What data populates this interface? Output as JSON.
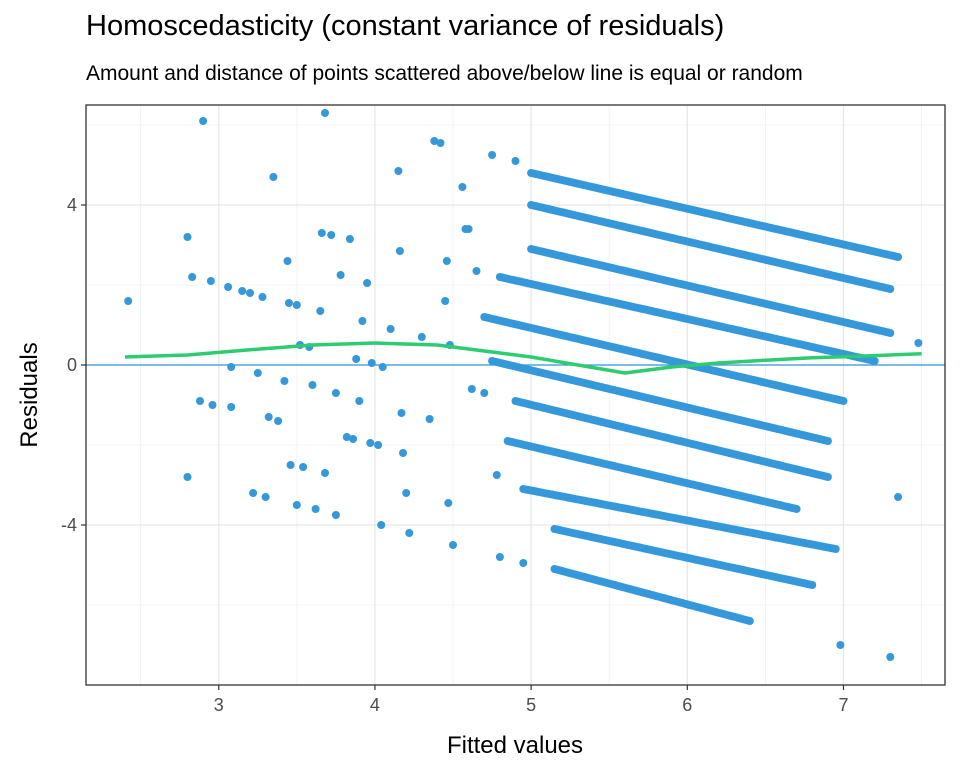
{
  "chart_data": {
    "type": "scatter",
    "title": "Homoscedasticity (constant variance of residuals)",
    "subtitle": "Amount and distance of points scattered above/below line is equal or random",
    "xlabel": "Fitted values",
    "ylabel": "Residuals",
    "xlim": [
      2.15,
      7.65
    ],
    "ylim": [
      -8,
      6.5
    ],
    "x_ticks": [
      3,
      4,
      5,
      6,
      7
    ],
    "y_ticks": [
      -4,
      0,
      4
    ],
    "grid": true,
    "colors": {
      "points": "#3498db",
      "smooth": "#2ecc71",
      "reference_line": "#3498db"
    },
    "reference_line": {
      "y": 0
    },
    "smooth_line": {
      "x": [
        2.4,
        2.8,
        3.2,
        3.6,
        4.0,
        4.4,
        4.7,
        5.0,
        5.3,
        5.6,
        5.9,
        6.2,
        6.5,
        6.8,
        7.1,
        7.5
      ],
      "y": [
        0.2,
        0.25,
        0.38,
        0.5,
        0.55,
        0.5,
        0.35,
        0.2,
        0.0,
        -0.2,
        -0.05,
        0.05,
        0.12,
        0.18,
        0.22,
        0.28
      ]
    },
    "bands": [
      {
        "x": [
          5.0,
          7.35
        ],
        "y": [
          4.8,
          2.7
        ]
      },
      {
        "x": [
          5.0,
          7.3
        ],
        "y": [
          4.0,
          1.9
        ]
      },
      {
        "x": [
          5.0,
          7.3
        ],
        "y": [
          2.9,
          0.8
        ]
      },
      {
        "x": [
          4.8,
          7.2
        ],
        "y": [
          2.2,
          0.1
        ]
      },
      {
        "x": [
          4.7,
          7.0
        ],
        "y": [
          1.2,
          -0.9
        ]
      },
      {
        "x": [
          4.75,
          6.9
        ],
        "y": [
          0.1,
          -1.9
        ]
      },
      {
        "x": [
          4.9,
          6.9
        ],
        "y": [
          -0.9,
          -2.8
        ]
      },
      {
        "x": [
          4.85,
          6.7
        ],
        "y": [
          -1.9,
          -3.6
        ]
      },
      {
        "x": [
          4.95,
          6.95
        ],
        "y": [
          -3.1,
          -4.6
        ]
      },
      {
        "x": [
          5.15,
          6.8
        ],
        "y": [
          -4.1,
          -5.5
        ]
      },
      {
        "x": [
          5.15,
          6.4
        ],
        "y": [
          -5.1,
          -6.4
        ]
      }
    ],
    "points": [
      [
        2.42,
        1.6
      ],
      [
        2.8,
        3.2
      ],
      [
        2.8,
        -2.8
      ],
      [
        2.83,
        2.2
      ],
      [
        2.9,
        6.1
      ],
      [
        2.95,
        2.1
      ],
      [
        2.88,
        -0.9
      ],
      [
        2.96,
        -1.0
      ],
      [
        3.06,
        1.95
      ],
      [
        3.08,
        -1.05
      ],
      [
        3.08,
        -0.05
      ],
      [
        3.15,
        1.85
      ],
      [
        3.2,
        1.8
      ],
      [
        3.22,
        -3.2
      ],
      [
        3.25,
        -0.2
      ],
      [
        3.28,
        1.7
      ],
      [
        3.3,
        -3.3
      ],
      [
        3.32,
        -1.3
      ],
      [
        3.35,
        4.7
      ],
      [
        3.38,
        -1.4
      ],
      [
        3.42,
        -0.4
      ],
      [
        3.44,
        2.6
      ],
      [
        3.45,
        1.55
      ],
      [
        3.46,
        -2.5
      ],
      [
        3.5,
        1.5
      ],
      [
        3.5,
        -3.5
      ],
      [
        3.52,
        0.5
      ],
      [
        3.54,
        -2.55
      ],
      [
        3.58,
        0.45
      ],
      [
        3.6,
        -0.5
      ],
      [
        3.62,
        -3.6
      ],
      [
        3.65,
        1.35
      ],
      [
        3.66,
        3.3
      ],
      [
        3.68,
        6.3
      ],
      [
        3.68,
        -2.7
      ],
      [
        3.72,
        3.25
      ],
      [
        3.75,
        -0.7
      ],
      [
        3.75,
        -3.75
      ],
      [
        3.78,
        2.25
      ],
      [
        3.82,
        -1.8
      ],
      [
        3.84,
        3.15
      ],
      [
        3.86,
        -1.85
      ],
      [
        3.88,
        0.15
      ],
      [
        3.9,
        -0.9
      ],
      [
        3.92,
        1.1
      ],
      [
        3.95,
        2.05
      ],
      [
        3.97,
        -1.95
      ],
      [
        3.98,
        0.05
      ],
      [
        4.02,
        -2.0
      ],
      [
        4.04,
        -4.0
      ],
      [
        4.05,
        -0.05
      ],
      [
        4.1,
        0.9
      ],
      [
        4.15,
        4.85
      ],
      [
        4.16,
        2.85
      ],
      [
        4.17,
        -1.2
      ],
      [
        4.18,
        -2.2
      ],
      [
        4.2,
        -3.2
      ],
      [
        4.22,
        -4.2
      ],
      [
        4.3,
        0.7
      ],
      [
        4.35,
        -1.35
      ],
      [
        4.38,
        5.6
      ],
      [
        4.42,
        5.55
      ],
      [
        4.45,
        1.6
      ],
      [
        4.46,
        2.6
      ],
      [
        4.47,
        -3.45
      ],
      [
        4.48,
        0.5
      ],
      [
        4.5,
        -4.5
      ],
      [
        4.56,
        4.45
      ],
      [
        4.58,
        3.4
      ],
      [
        4.6,
        3.4
      ],
      [
        4.62,
        -0.6
      ],
      [
        4.65,
        2.35
      ],
      [
        4.7,
        -0.7
      ],
      [
        4.75,
        5.25
      ],
      [
        4.78,
        -2.75
      ],
      [
        4.8,
        -4.8
      ],
      [
        4.9,
        5.1
      ],
      [
        4.95,
        -4.95
      ],
      [
        6.98,
        -7.0
      ],
      [
        7.3,
        -7.3
      ],
      [
        7.48,
        0.55
      ],
      [
        7.35,
        -3.3
      ]
    ]
  }
}
